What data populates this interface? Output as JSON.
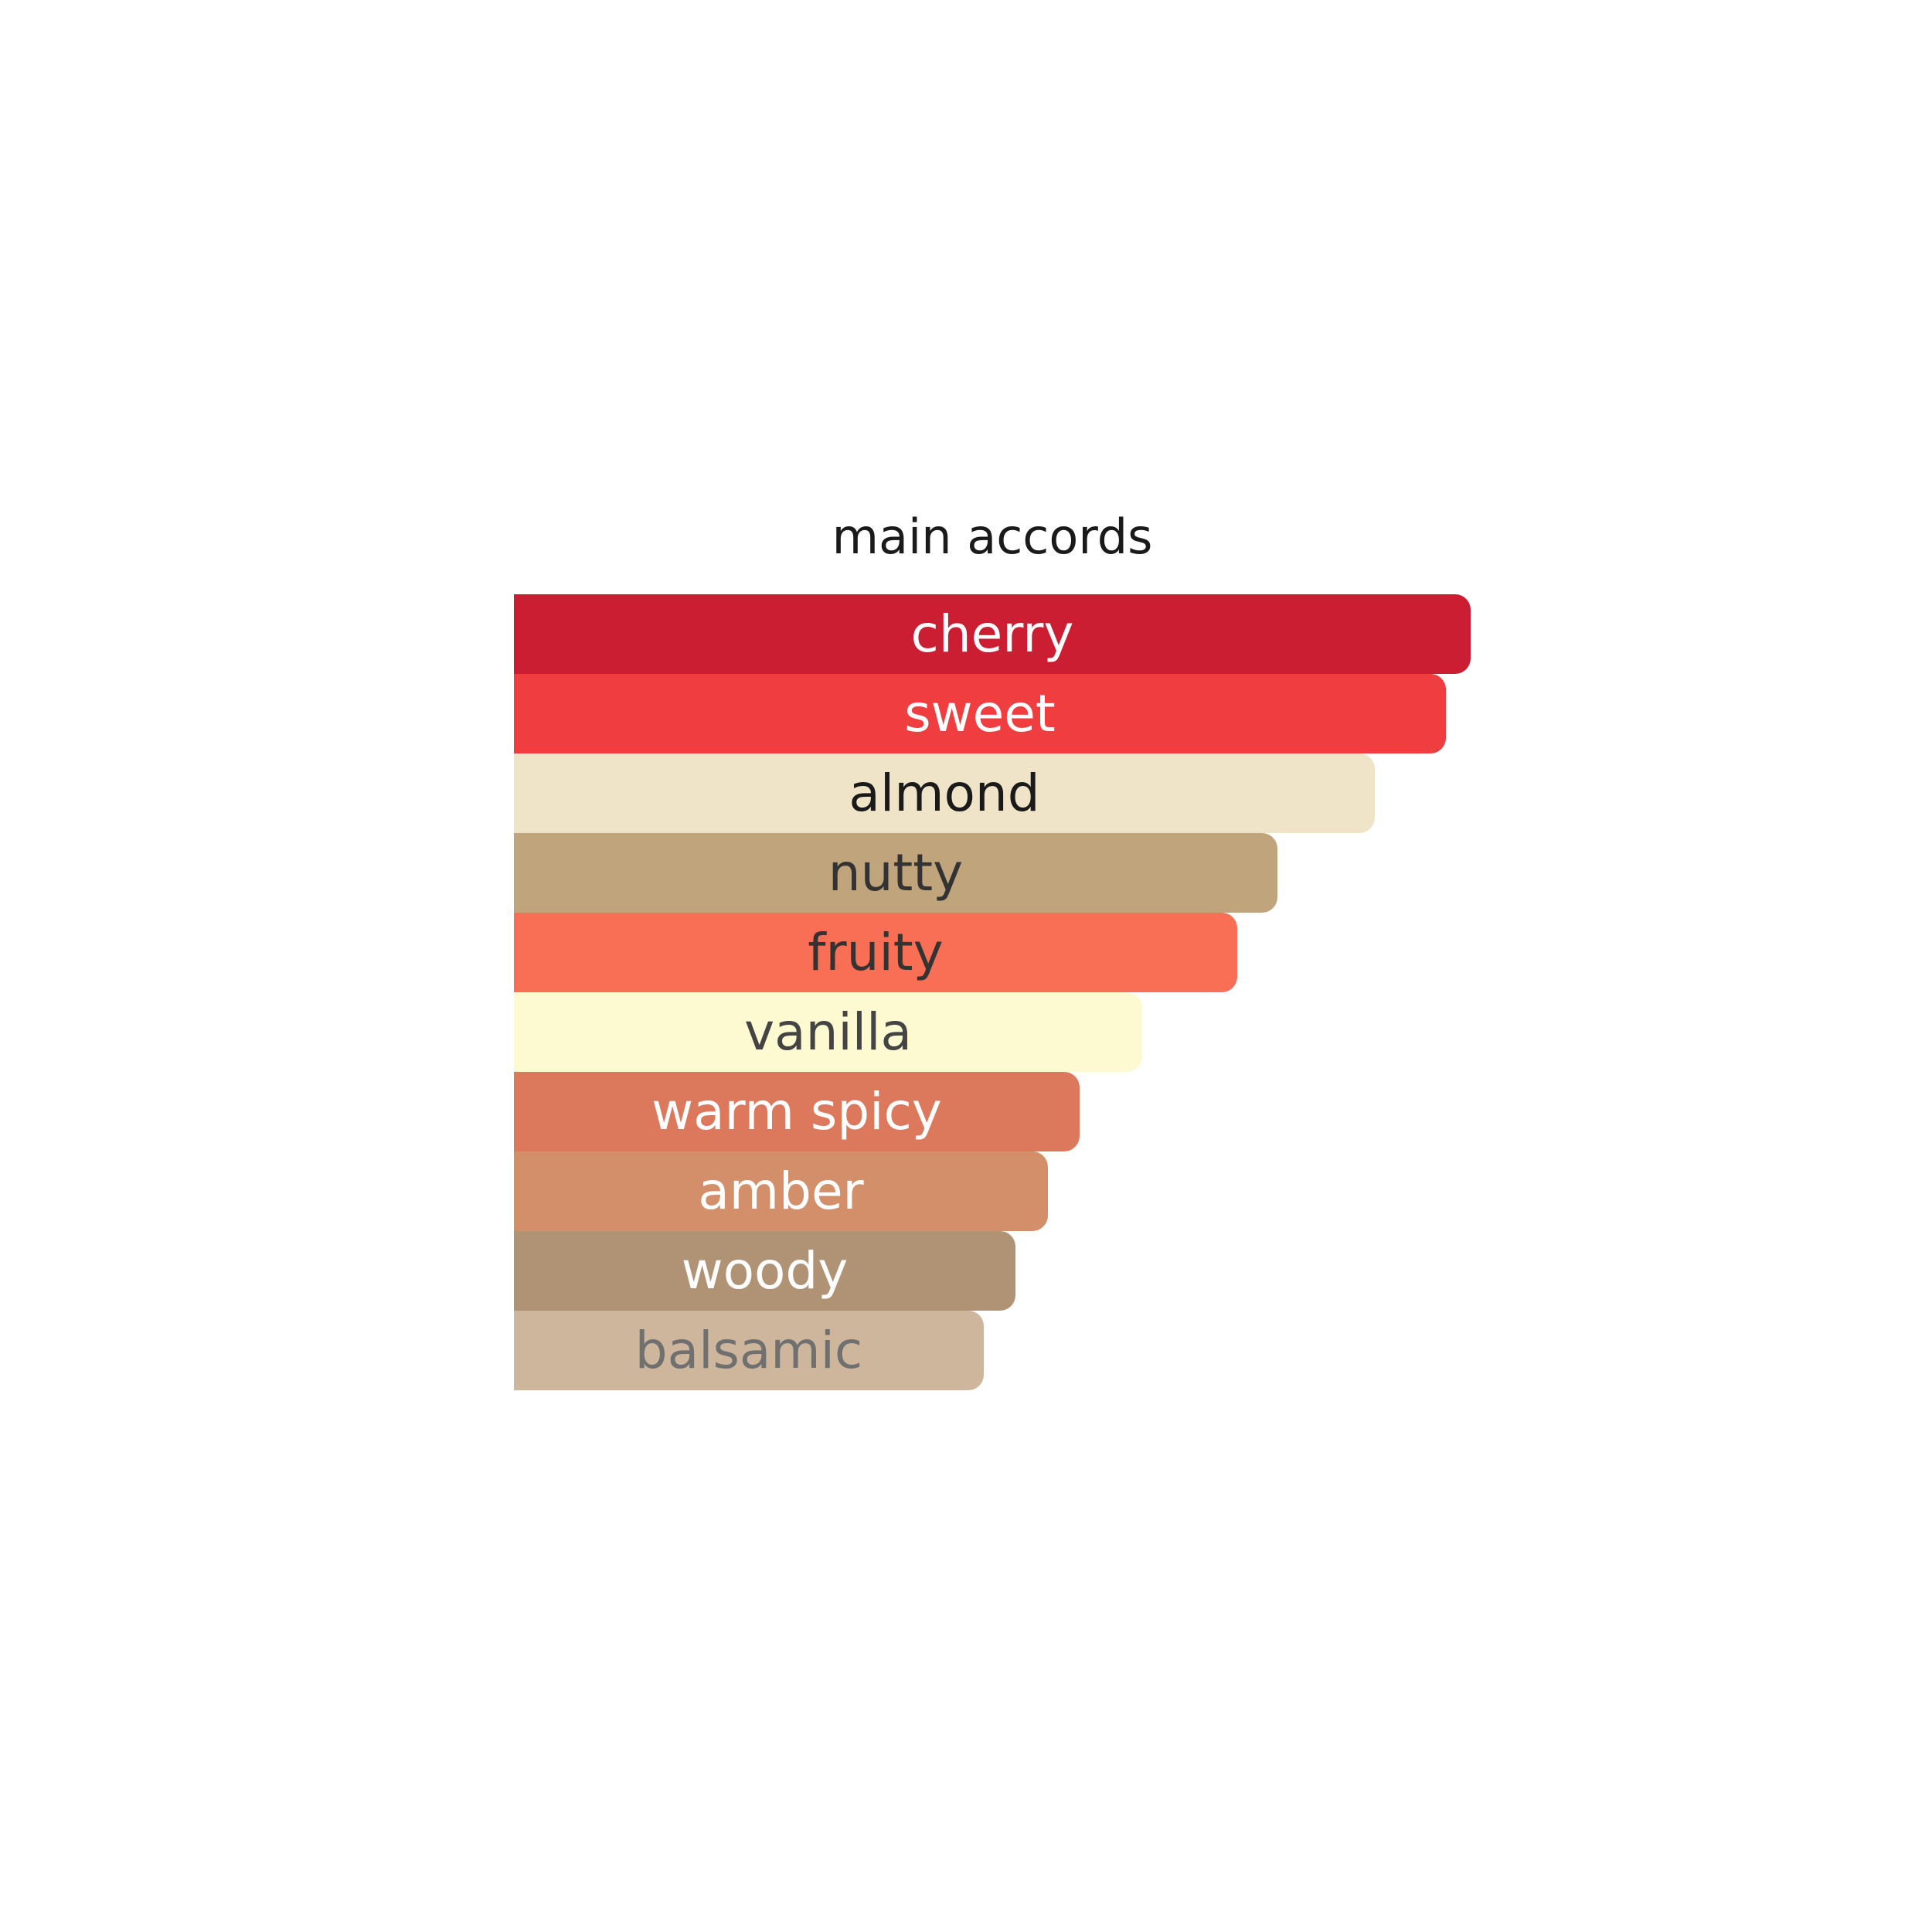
{
  "chart_data": {
    "type": "bar",
    "orientation": "horizontal",
    "title": "main accords",
    "categories": [
      "cherry",
      "sweet",
      "almond",
      "nutty",
      "fruity",
      "vanilla",
      "warm spicy",
      "amber",
      "woody",
      "balsamic"
    ],
    "values": [
      100,
      97.4,
      90,
      79.8,
      75.6,
      65.7,
      59.1,
      55.8,
      52.4,
      49.1
    ],
    "xlim": [
      0,
      100
    ],
    "grid": false,
    "legend": false,
    "colors": [
      "#cc1e33",
      "#ef3d40",
      "#efe4c8",
      "#c0a57c",
      "#f86f55",
      "#fdfad2",
      "#dc785c",
      "#d38f69",
      "#b09275",
      "#cdb69c"
    ],
    "label_colors": [
      "#ffffff",
      "#ffffff",
      "#1a1a1a",
      "#333333",
      "#333333",
      "#444444",
      "#ffffff",
      "#ffffff",
      "#ffffff",
      "#707070"
    ]
  }
}
